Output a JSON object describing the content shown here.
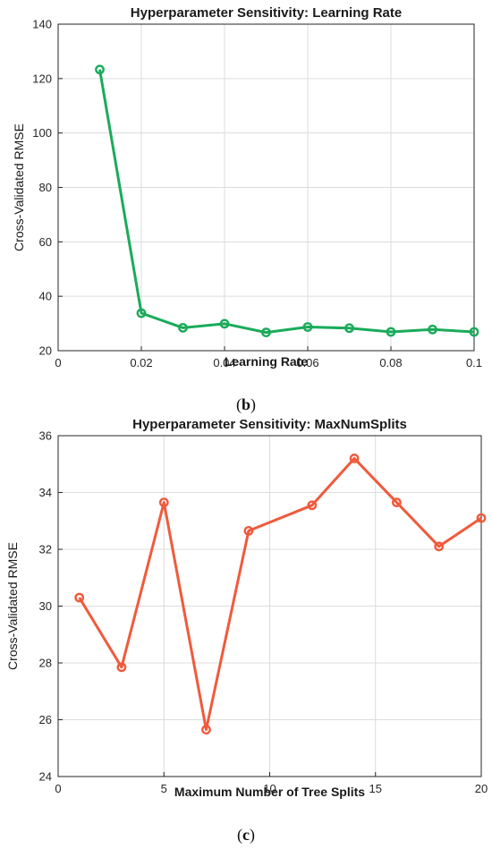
{
  "chart_data": [
    {
      "type": "line",
      "panel_label": "b",
      "title": "Hyperparameter Sensitivity: Learning Rate",
      "xlabel": "Learning Rate",
      "ylabel": "Cross-Validated RMSE",
      "xlim": [
        0,
        0.1
      ],
      "ylim": [
        20,
        140
      ],
      "xticks": [
        0,
        0.02,
        0.04,
        0.06,
        0.08,
        0.1
      ],
      "xtick_labels": [
        "0",
        "0.02",
        "0.04",
        "0.06",
        "0.08",
        "0.1"
      ],
      "yticks": [
        20,
        40,
        60,
        80,
        100,
        120,
        140
      ],
      "ytick_labels": [
        "20",
        "40",
        "60",
        "80",
        "100",
        "120",
        "140"
      ],
      "grid": true,
      "color": "#1aab5a",
      "x": [
        0.01,
        0.02,
        0.03,
        0.04,
        0.05,
        0.06,
        0.07,
        0.08,
        0.09,
        0.1
      ],
      "y": [
        123.3,
        33.8,
        28.4,
        29.9,
        26.7,
        28.7,
        28.3,
        26.9,
        27.8,
        26.9
      ]
    },
    {
      "type": "line",
      "panel_label": "c",
      "title": "Hyperparameter Sensitivity: MaxNumSplits",
      "xlabel": "Maximum Number of Tree Splits",
      "ylabel": "Cross-Validated RMSE",
      "xlim": [
        0,
        20
      ],
      "ylim": [
        24,
        36
      ],
      "xticks": [
        0,
        5,
        10,
        15,
        20
      ],
      "xtick_labels": [
        "0",
        "5",
        "10",
        "15",
        "20"
      ],
      "yticks": [
        24,
        26,
        28,
        30,
        32,
        34,
        36
      ],
      "ytick_labels": [
        "24",
        "26",
        "28",
        "30",
        "32",
        "34",
        "36"
      ],
      "grid": true,
      "color": "#f05a3c",
      "x": [
        1,
        3,
        5,
        7,
        9,
        12,
        14,
        16,
        18,
        20
      ],
      "y": [
        30.3,
        27.85,
        33.65,
        25.65,
        32.65,
        33.55,
        35.2,
        33.65,
        32.1,
        33.1
      ]
    }
  ]
}
